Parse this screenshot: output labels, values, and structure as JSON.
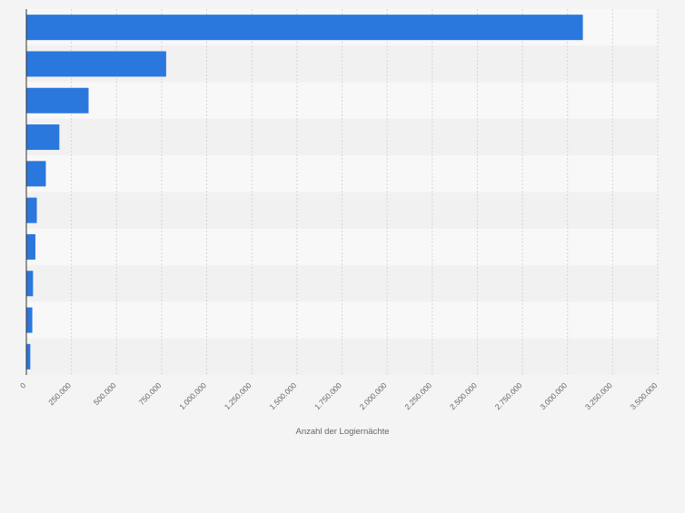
{
  "chart_data": {
    "type": "bar",
    "orientation": "horizontal",
    "categories": [
      "",
      "",
      "",
      "",
      "",
      "",
      "",
      "",
      "",
      ""
    ],
    "values": [
      3085000,
      775000,
      345000,
      183000,
      108000,
      58000,
      50000,
      37000,
      33000,
      22000
    ],
    "xlabel": "Anzahl der Logiernächte",
    "ylabel": "",
    "xlim": [
      0,
      3500000
    ],
    "xticks": [
      0,
      250000,
      500000,
      750000,
      1000000,
      1250000,
      1500000,
      1750000,
      2000000,
      2250000,
      2500000,
      2750000,
      3000000,
      3250000,
      3500000
    ],
    "xtick_labels": [
      "0",
      "250.000",
      "500.000",
      "750.000",
      "1.000.000",
      "1.250.000",
      "1.500.000",
      "1.750.000",
      "2.000.000",
      "2.250.000",
      "2.500.000",
      "2.750.000",
      "3.000.000",
      "3.250.000",
      "3.500.000"
    ],
    "grid": true,
    "legend": "none",
    "colors": {
      "bar": "#2a77dd",
      "band_light": "#f8f8f8",
      "band_dark": "#f1f1f1",
      "grid": "#d5d5d5",
      "axis": "#333333",
      "text": "#666666",
      "background": "#f4f4f4"
    }
  }
}
